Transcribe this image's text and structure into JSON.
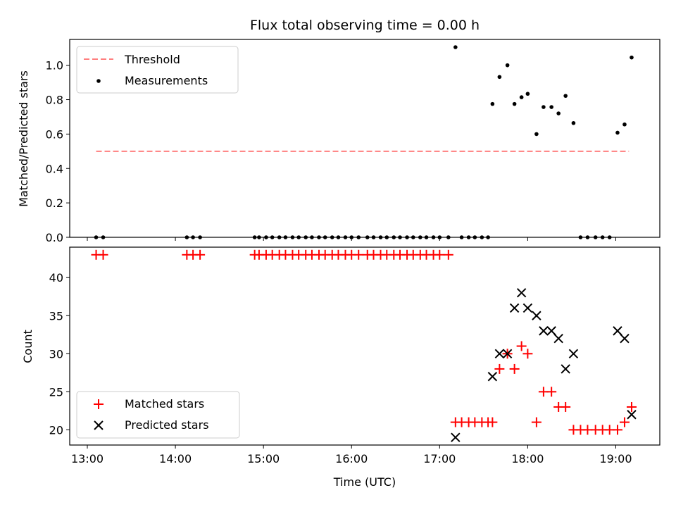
{
  "chart_data": [
    {
      "type": "scatter",
      "title": "Flux total observing time = 0.00 h",
      "xlabel": "",
      "ylabel": "Matched/Predicted stars",
      "xlim": [
        12.8,
        19.5
      ],
      "ylim": [
        0.0,
        1.15
      ],
      "y_ticks": [
        0.0,
        0.2,
        0.4,
        0.6,
        0.8,
        1.0
      ],
      "y_tick_labels": [
        "0.0",
        "0.2",
        "0.4",
        "0.6",
        "0.8",
        "1.0"
      ],
      "x_ticks_unlabeled": [
        13,
        14,
        15,
        16,
        17,
        18,
        19
      ],
      "legend_position": "top-left",
      "legend": [
        {
          "label": "Threshold",
          "kind": "dashed-line",
          "color": "#ff7f7f"
        },
        {
          "label": "Measurements",
          "kind": "dot",
          "color": "#000000"
        }
      ],
      "threshold": {
        "y": 0.5,
        "x_start": 13.1,
        "x_end": 19.15,
        "color": "#ff7f7f"
      },
      "series": [
        {
          "name": "Measurements",
          "color": "#000000",
          "marker": "dot",
          "points": [
            [
              13.1,
              0
            ],
            [
              13.18,
              0
            ],
            [
              14.13,
              0
            ],
            [
              14.2,
              0
            ],
            [
              14.28,
              0
            ],
            [
              14.9,
              0
            ],
            [
              14.95,
              0
            ],
            [
              15.03,
              0
            ],
            [
              15.1,
              0
            ],
            [
              15.18,
              0
            ],
            [
              15.25,
              0
            ],
            [
              15.33,
              0
            ],
            [
              15.4,
              0
            ],
            [
              15.48,
              0
            ],
            [
              15.55,
              0
            ],
            [
              15.63,
              0
            ],
            [
              15.7,
              0
            ],
            [
              15.78,
              0
            ],
            [
              15.85,
              0
            ],
            [
              15.93,
              0
            ],
            [
              16.0,
              0
            ],
            [
              16.08,
              0
            ],
            [
              16.18,
              0
            ],
            [
              16.25,
              0
            ],
            [
              16.33,
              0
            ],
            [
              16.4,
              0
            ],
            [
              16.48,
              0
            ],
            [
              16.55,
              0
            ],
            [
              16.63,
              0
            ],
            [
              16.7,
              0
            ],
            [
              16.78,
              0
            ],
            [
              16.85,
              0
            ],
            [
              16.93,
              0
            ],
            [
              17.0,
              0
            ],
            [
              17.1,
              0
            ],
            [
              17.18,
              1.105
            ],
            [
              17.25,
              0
            ],
            [
              17.33,
              0
            ],
            [
              17.4,
              0
            ],
            [
              17.48,
              0
            ],
            [
              17.55,
              0
            ],
            [
              17.6,
              0.775
            ],
            [
              17.68,
              0.932
            ],
            [
              17.77,
              1.0
            ],
            [
              17.85,
              0.775
            ],
            [
              17.93,
              0.814
            ],
            [
              18.0,
              0.834
            ],
            [
              18.1,
              0.6
            ],
            [
              18.18,
              0.757
            ],
            [
              18.27,
              0.757
            ],
            [
              18.35,
              0.72
            ],
            [
              18.43,
              0.822
            ],
            [
              18.52,
              0.664
            ],
            [
              18.6,
              0
            ],
            [
              18.68,
              0
            ],
            [
              18.77,
              0
            ],
            [
              18.85,
              0
            ],
            [
              18.93,
              0
            ],
            [
              19.02,
              0.608
            ],
            [
              19.1,
              0.656
            ],
            [
              19.18,
              1.045
            ]
          ]
        }
      ]
    },
    {
      "type": "scatter",
      "title": "",
      "xlabel": "Time (UTC)",
      "ylabel": "Count",
      "xlim": [
        12.8,
        19.5
      ],
      "ylim": [
        18.0,
        44.0
      ],
      "y_ticks": [
        20,
        25,
        30,
        35,
        40
      ],
      "y_tick_labels": [
        "20",
        "25",
        "30",
        "35",
        "40"
      ],
      "x_ticks": [
        13,
        14,
        15,
        16,
        17,
        18,
        19
      ],
      "x_tick_labels": [
        "13:00",
        "14:00",
        "15:00",
        "16:00",
        "17:00",
        "18:00",
        "19:00"
      ],
      "legend_position": "bottom-left",
      "legend": [
        {
          "label": "Matched stars",
          "kind": "plus",
          "color": "#ff0000"
        },
        {
          "label": "Predicted stars",
          "kind": "x",
          "color": "#000000"
        }
      ],
      "series": [
        {
          "name": "Matched stars",
          "color": "#ff0000",
          "marker": "plus",
          "points": [
            [
              13.1,
              43
            ],
            [
              13.18,
              43
            ],
            [
              14.13,
              43
            ],
            [
              14.2,
              43
            ],
            [
              14.28,
              43
            ],
            [
              14.9,
              43
            ],
            [
              14.95,
              43
            ],
            [
              15.03,
              43
            ],
            [
              15.1,
              43
            ],
            [
              15.18,
              43
            ],
            [
              15.25,
              43
            ],
            [
              15.33,
              43
            ],
            [
              15.4,
              43
            ],
            [
              15.48,
              43
            ],
            [
              15.55,
              43
            ],
            [
              15.63,
              43
            ],
            [
              15.7,
              43
            ],
            [
              15.78,
              43
            ],
            [
              15.85,
              43
            ],
            [
              15.93,
              43
            ],
            [
              16.0,
              43
            ],
            [
              16.08,
              43
            ],
            [
              16.18,
              43
            ],
            [
              16.25,
              43
            ],
            [
              16.33,
              43
            ],
            [
              16.4,
              43
            ],
            [
              16.48,
              43
            ],
            [
              16.55,
              43
            ],
            [
              16.63,
              43
            ],
            [
              16.7,
              43
            ],
            [
              16.78,
              43
            ],
            [
              16.85,
              43
            ],
            [
              16.93,
              43
            ],
            [
              17.0,
              43
            ],
            [
              17.1,
              43
            ],
            [
              17.18,
              21
            ],
            [
              17.25,
              21
            ],
            [
              17.33,
              21
            ],
            [
              17.4,
              21
            ],
            [
              17.48,
              21
            ],
            [
              17.55,
              21
            ],
            [
              17.6,
              21
            ],
            [
              17.68,
              28
            ],
            [
              17.77,
              30
            ],
            [
              17.85,
              28
            ],
            [
              17.93,
              31
            ],
            [
              18.0,
              30
            ],
            [
              18.1,
              21
            ],
            [
              18.18,
              25
            ],
            [
              18.27,
              25
            ],
            [
              18.35,
              23
            ],
            [
              18.43,
              23
            ],
            [
              18.52,
              20
            ],
            [
              18.6,
              20
            ],
            [
              18.68,
              20
            ],
            [
              18.77,
              20
            ],
            [
              18.85,
              20
            ],
            [
              18.93,
              20
            ],
            [
              19.02,
              20
            ],
            [
              19.1,
              21
            ],
            [
              19.18,
              23
            ]
          ]
        },
        {
          "name": "Predicted stars",
          "color": "#000000",
          "marker": "x",
          "points": [
            [
              17.18,
              19
            ],
            [
              17.6,
              27
            ],
            [
              17.68,
              30
            ],
            [
              17.77,
              30
            ],
            [
              17.85,
              36
            ],
            [
              17.93,
              38
            ],
            [
              18.0,
              36
            ],
            [
              18.1,
              35
            ],
            [
              18.18,
              33
            ],
            [
              18.27,
              33
            ],
            [
              18.35,
              32
            ],
            [
              18.43,
              28
            ],
            [
              18.52,
              30
            ],
            [
              19.02,
              33
            ],
            [
              19.1,
              32
            ],
            [
              19.18,
              22
            ]
          ]
        }
      ]
    }
  ]
}
